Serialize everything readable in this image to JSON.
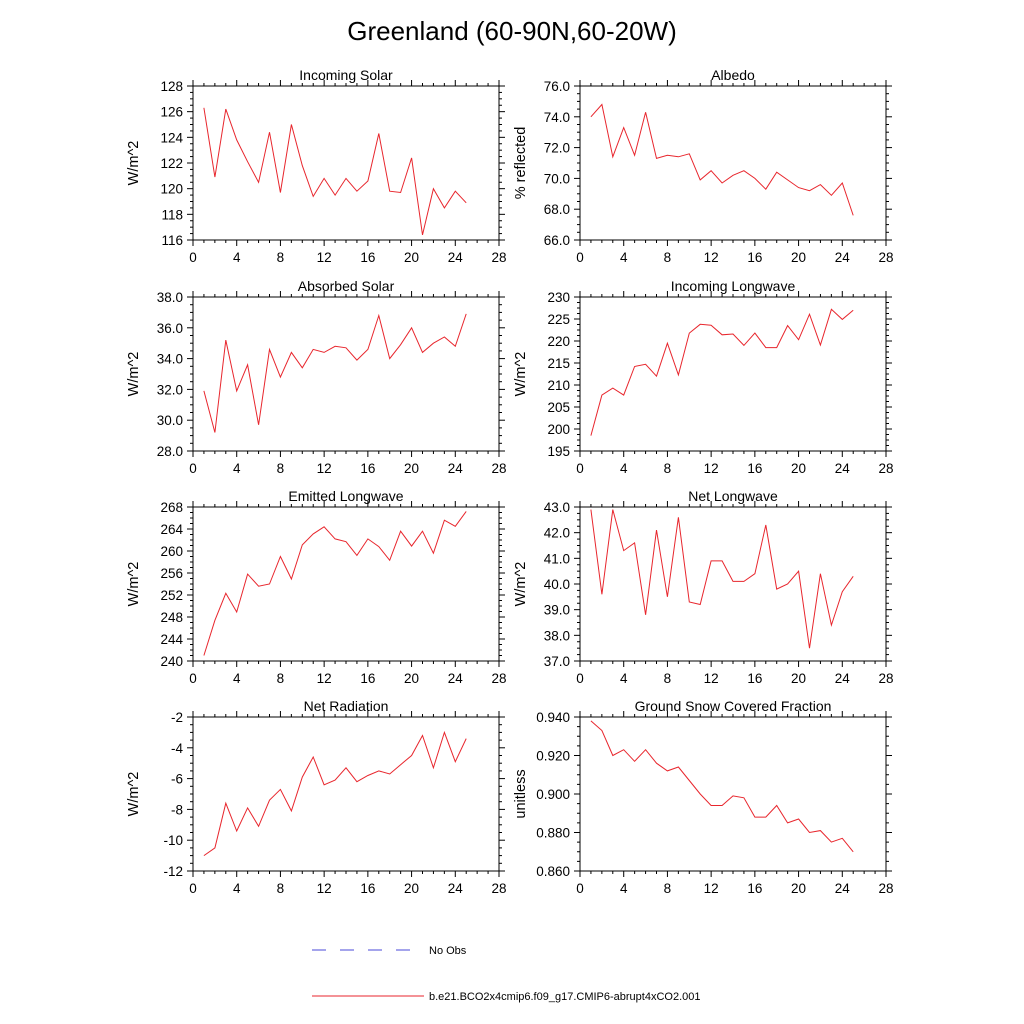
{
  "figure": {
    "title": "Greenland (60-90N,60-20W)"
  },
  "legend": {
    "obs_label": "No Obs",
    "obs_color": "#4a4ad8",
    "model_label": "b.e21.BCO2x4cmip6.f09_g17.CMIP6-abrupt4xCO2.001",
    "model_color": "#e8262d"
  },
  "chart_data": [
    {
      "type": "line",
      "title": "Incoming Solar",
      "ylabel": "W/m^2",
      "xlim": [
        0,
        28
      ],
      "xticks": [
        "0",
        "4",
        "8",
        "12",
        "16",
        "20",
        "24",
        "28"
      ],
      "ylim": [
        116,
        128
      ],
      "yticks": [
        "116",
        "118",
        "120",
        "122",
        "124",
        "126",
        "128"
      ],
      "x": [
        1,
        2,
        3,
        4,
        5,
        6,
        7,
        8,
        9,
        10,
        11,
        12,
        13,
        14,
        15,
        16,
        17,
        18,
        19,
        20,
        21,
        22,
        23,
        24,
        25
      ],
      "values": [
        126.3,
        120.9,
        126.2,
        123.8,
        122.1,
        120.5,
        124.4,
        119.7,
        125.0,
        121.8,
        119.4,
        120.8,
        119.5,
        120.8,
        119.8,
        120.6,
        124.3,
        119.8,
        119.7,
        122.4,
        116.4,
        120.0,
        118.5,
        119.8,
        118.9
      ]
    },
    {
      "type": "line",
      "title": "Albedo",
      "ylabel": "% reflected",
      "xlim": [
        0,
        28
      ],
      "xticks": [
        "0",
        "4",
        "8",
        "12",
        "16",
        "20",
        "24",
        "28"
      ],
      "ylim": [
        66,
        76
      ],
      "yticks": [
        "66.0",
        "68.0",
        "70.0",
        "72.0",
        "74.0",
        "76.0"
      ],
      "x": [
        1,
        2,
        3,
        4,
        5,
        6,
        7,
        8,
        9,
        10,
        11,
        12,
        13,
        14,
        15,
        16,
        17,
        18,
        19,
        20,
        21,
        22,
        23,
        24,
        25
      ],
      "values": [
        74.0,
        74.8,
        71.4,
        73.3,
        71.5,
        74.3,
        71.3,
        71.5,
        71.4,
        71.6,
        69.9,
        70.5,
        69.7,
        70.2,
        70.5,
        70.0,
        69.3,
        70.4,
        69.9,
        69.4,
        69.2,
        69.6,
        68.9,
        69.7,
        67.6
      ]
    },
    {
      "type": "line",
      "title": "Absorbed Solar",
      "ylabel": "W/m^2",
      "xlim": [
        0,
        28
      ],
      "xticks": [
        "0",
        "4",
        "8",
        "12",
        "16",
        "20",
        "24",
        "28"
      ],
      "ylim": [
        28,
        38
      ],
      "yticks": [
        "28.0",
        "30.0",
        "32.0",
        "34.0",
        "36.0",
        "38.0"
      ],
      "x": [
        1,
        2,
        3,
        4,
        5,
        6,
        7,
        8,
        9,
        10,
        11,
        12,
        13,
        14,
        15,
        16,
        17,
        18,
        19,
        20,
        21,
        22,
        23,
        24,
        25
      ],
      "values": [
        31.9,
        29.2,
        35.2,
        31.9,
        33.6,
        29.7,
        34.6,
        32.8,
        34.4,
        33.4,
        34.6,
        34.4,
        34.8,
        34.7,
        33.9,
        34.6,
        36.8,
        34.0,
        34.9,
        36.0,
        34.4,
        35.0,
        35.4,
        34.8,
        36.9
      ]
    },
    {
      "type": "line",
      "title": "Incoming Longwave",
      "ylabel": "W/m^2",
      "xlim": [
        0,
        28
      ],
      "xticks": [
        "0",
        "4",
        "8",
        "12",
        "16",
        "20",
        "24",
        "28"
      ],
      "ylim": [
        195,
        230
      ],
      "yticks": [
        "195",
        "200",
        "205",
        "210",
        "215",
        "220",
        "225",
        "230"
      ],
      "x": [
        1,
        2,
        3,
        4,
        5,
        6,
        7,
        8,
        9,
        10,
        11,
        12,
        13,
        14,
        15,
        16,
        17,
        18,
        19,
        20,
        21,
        22,
        23,
        24,
        25
      ],
      "values": [
        198.5,
        207.7,
        209.3,
        207.7,
        214.2,
        214.7,
        212.0,
        219.5,
        212.3,
        221.8,
        223.8,
        223.6,
        221.4,
        221.6,
        219.0,
        221.8,
        218.5,
        218.5,
        223.5,
        220.3,
        226.1,
        219.1,
        227.2,
        224.9,
        227.0
      ]
    },
    {
      "type": "line",
      "title": "Emitted Longwave",
      "ylabel": "W/m^2",
      "xlim": [
        0,
        28
      ],
      "xticks": [
        "0",
        "4",
        "8",
        "12",
        "16",
        "20",
        "24",
        "28"
      ],
      "ylim": [
        240,
        268
      ],
      "yticks": [
        "240",
        "244",
        "248",
        "252",
        "256",
        "260",
        "264",
        "268"
      ],
      "x": [
        1,
        2,
        3,
        4,
        5,
        6,
        7,
        8,
        9,
        10,
        11,
        12,
        13,
        14,
        15,
        16,
        17,
        18,
        19,
        20,
        21,
        22,
        23,
        24,
        25
      ],
      "values": [
        241.0,
        247.4,
        252.3,
        248.9,
        255.8,
        253.6,
        254.0,
        259.0,
        254.9,
        261.1,
        263.1,
        264.4,
        262.2,
        261.7,
        259.2,
        262.2,
        260.8,
        258.3,
        263.6,
        260.9,
        263.6,
        259.6,
        265.6,
        264.5,
        267.2
      ]
    },
    {
      "type": "line",
      "title": "Net Longwave",
      "ylabel": "W/m^2",
      "xlim": [
        0,
        28
      ],
      "xticks": [
        "0",
        "4",
        "8",
        "12",
        "16",
        "20",
        "24",
        "28"
      ],
      "ylim": [
        37,
        43
      ],
      "yticks": [
        "37.0",
        "38.0",
        "39.0",
        "40.0",
        "41.0",
        "42.0",
        "43.0"
      ],
      "x": [
        1,
        2,
        3,
        4,
        5,
        6,
        7,
        8,
        9,
        10,
        11,
        12,
        13,
        14,
        15,
        16,
        17,
        18,
        19,
        20,
        21,
        22,
        23,
        24,
        25
      ],
      "values": [
        42.9,
        39.6,
        42.9,
        41.3,
        41.6,
        38.8,
        42.1,
        39.5,
        42.6,
        39.3,
        39.2,
        40.9,
        40.9,
        40.1,
        40.1,
        40.4,
        42.3,
        39.8,
        40.0,
        40.5,
        37.5,
        40.4,
        38.4,
        39.7,
        40.3
      ]
    },
    {
      "type": "line",
      "title": "Net Radiation",
      "ylabel": "W/m^2",
      "xlim": [
        0,
        28
      ],
      "xticks": [
        "0",
        "4",
        "8",
        "12",
        "16",
        "20",
        "24",
        "28"
      ],
      "ylim": [
        -12,
        -2
      ],
      "yticks": [
        "-12",
        "-10",
        "-8",
        "-6",
        "-4",
        "-2"
      ],
      "x": [
        1,
        2,
        3,
        4,
        5,
        6,
        7,
        8,
        9,
        10,
        11,
        12,
        13,
        14,
        15,
        16,
        17,
        18,
        19,
        20,
        21,
        22,
        23,
        24,
        25
      ],
      "values": [
        -11.0,
        -10.5,
        -7.6,
        -9.4,
        -7.9,
        -9.1,
        -7.4,
        -6.7,
        -8.1,
        -5.9,
        -4.6,
        -6.4,
        -6.1,
        -5.3,
        -6.2,
        -5.8,
        -5.5,
        -5.7,
        -5.1,
        -4.5,
        -3.2,
        -5.3,
        -3.0,
        -4.9,
        -3.4
      ]
    },
    {
      "type": "line",
      "title": "Ground Snow Covered Fraction",
      "ylabel": "unitless",
      "xlim": [
        0,
        28
      ],
      "xticks": [
        "0",
        "4",
        "8",
        "12",
        "16",
        "20",
        "24",
        "28"
      ],
      "ylim": [
        0.86,
        0.94
      ],
      "yticks": [
        "0.860",
        "0.880",
        "0.900",
        "0.920",
        "0.940"
      ],
      "x": [
        1,
        2,
        3,
        4,
        5,
        6,
        7,
        8,
        9,
        10,
        11,
        12,
        13,
        14,
        15,
        16,
        17,
        18,
        19,
        20,
        21,
        22,
        23,
        24,
        25
      ],
      "values": [
        0.938,
        0.933,
        0.92,
        0.923,
        0.917,
        0.923,
        0.916,
        0.912,
        0.914,
        0.907,
        0.9,
        0.894,
        0.894,
        0.899,
        0.898,
        0.888,
        0.888,
        0.894,
        0.885,
        0.887,
        0.88,
        0.881,
        0.875,
        0.877,
        0.87
      ]
    }
  ]
}
